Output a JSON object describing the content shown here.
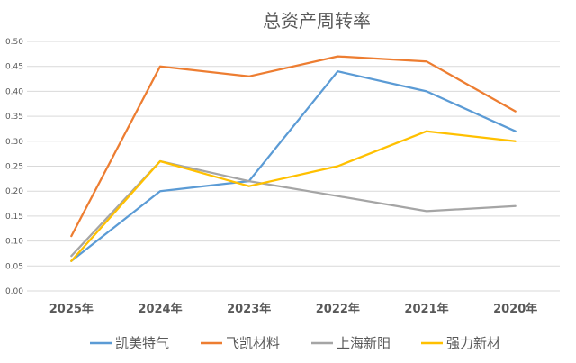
{
  "chart_data": {
    "type": "line",
    "title": "总资产周转率",
    "categories": [
      "2025年",
      "2024年",
      "2023年",
      "2022年",
      "2021年",
      "2020年"
    ],
    "ylim": [
      0,
      0.5
    ],
    "yticks": [
      "0.00",
      "0.05",
      "0.10",
      "0.15",
      "0.20",
      "0.25",
      "0.30",
      "0.35",
      "0.40",
      "0.45",
      "0.50"
    ],
    "grid": true,
    "legend_position": "bottom",
    "series": [
      {
        "name": "凯美特气",
        "color": "#5B9BD5",
        "values": [
          0.06,
          0.2,
          0.22,
          0.44,
          0.4,
          0.32
        ]
      },
      {
        "name": "飞凯材料",
        "color": "#ED7D31",
        "values": [
          0.11,
          0.45,
          0.43,
          0.47,
          0.46,
          0.36
        ]
      },
      {
        "name": "上海新阳",
        "color": "#A5A5A5",
        "values": [
          0.07,
          0.26,
          0.22,
          0.19,
          0.16,
          0.17
        ]
      },
      {
        "name": "强力新材",
        "color": "#FFC000",
        "values": [
          0.06,
          0.26,
          0.21,
          0.25,
          0.32,
          0.3
        ]
      }
    ]
  }
}
